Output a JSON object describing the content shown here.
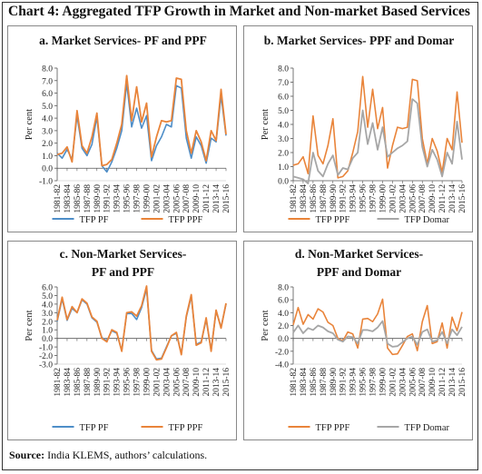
{
  "page": {
    "title": "Chart 4: Aggregated TFP Growth in Market and Non-market Based Services",
    "source_label": "Source:",
    "source_text": " India KLEMS, authors’ calculations."
  },
  "colors": {
    "tfp_pf": "#4e8ec8",
    "tfp_ppf": "#e9843a",
    "tfp_domar": "#a6a6a6"
  },
  "chart_data": [
    {
      "id": "a",
      "type": "line",
      "title": [
        "a. Market Services- PF and PPF"
      ],
      "ylabel": "Per cent",
      "ylim": [
        -1.0,
        8.0
      ],
      "yticks": [
        -1.0,
        0.0,
        1.0,
        2.0,
        3.0,
        4.0,
        5.0,
        6.0,
        7.0,
        8.0
      ],
      "x": [
        "1981-82",
        "1982-83",
        "1983-84",
        "1984-85",
        "1985-86",
        "1986-87",
        "1987-88",
        "1988-89",
        "1989-90",
        "1990-91",
        "1991-92",
        "1992-93",
        "1993-94",
        "1994-95",
        "1995-96",
        "1996-97",
        "1997-98",
        "1998-99",
        "1999-00",
        "2000-01",
        "2001-02",
        "2002-03",
        "2003-04",
        "2004-05",
        "2005-06",
        "2006-07",
        "2007-08",
        "2008-09",
        "2009-10",
        "2010-11",
        "2011-12",
        "2012-13",
        "2013-14",
        "2014-15",
        "2015-16"
      ],
      "xticks": [
        "1981-82",
        "1983-84",
        "1985-86",
        "1987-88",
        "1989-90",
        "1991-92",
        "1993-94",
        "1995-96",
        "1997-98",
        "1999-00",
        "2001-02",
        "2003-04",
        "2005-06",
        "2007-08",
        "2009-10",
        "2011-12",
        "2013-14",
        "2015-16"
      ],
      "series": [
        {
          "name": "TFP PF",
          "color_key": "tfp_pf",
          "values": [
            1.2,
            0.8,
            1.5,
            0.7,
            4.2,
            1.6,
            1.0,
            1.9,
            4.1,
            0.2,
            -0.3,
            0.5,
            1.6,
            3.0,
            6.8,
            3.3,
            4.8,
            3.2,
            4.2,
            0.6,
            1.8,
            2.5,
            3.5,
            3.3,
            6.6,
            6.4,
            2.4,
            0.8,
            2.5,
            1.8,
            0.4,
            2.4,
            2.1,
            5.8,
            2.6
          ]
        },
        {
          "name": "TFP PPF",
          "color_key": "tfp_ppf",
          "values": [
            1.1,
            1.2,
            1.7,
            0.5,
            4.6,
            1.8,
            1.2,
            2.5,
            4.4,
            0.2,
            0.3,
            0.7,
            2.0,
            3.5,
            7.4,
            3.8,
            6.5,
            3.7,
            5.2,
            0.9,
            2.5,
            3.8,
            3.7,
            3.8,
            7.2,
            7.1,
            3.0,
            1.2,
            3.0,
            2.1,
            0.6,
            3.0,
            2.2,
            6.3,
            2.7
          ]
        }
      ]
    },
    {
      "id": "b",
      "type": "line",
      "title": [
        "b. Market Services- PPF and Domar"
      ],
      "ylabel": "Per cent",
      "ylim": [
        0.0,
        8.0
      ],
      "yticks": [
        0.0,
        1.0,
        2.0,
        3.0,
        4.0,
        5.0,
        6.0,
        7.0,
        8.0
      ],
      "x": [
        "1981-82",
        "1982-83",
        "1983-84",
        "1984-85",
        "1985-86",
        "1986-87",
        "1987-88",
        "1988-89",
        "1989-90",
        "1990-91",
        "1991-92",
        "1992-93",
        "1993-94",
        "1994-95",
        "1995-96",
        "1996-97",
        "1997-98",
        "1998-99",
        "1999-00",
        "2000-01",
        "2001-02",
        "2002-03",
        "2003-04",
        "2004-05",
        "2005-06",
        "2006-07",
        "2007-08",
        "2008-09",
        "2009-10",
        "2010-11",
        "2011-12",
        "2012-13",
        "2013-14",
        "2014-15",
        "2015-16"
      ],
      "xticks": [
        "1981-82",
        "1983-84",
        "1985-86",
        "1987-88",
        "1989-90",
        "1991-92",
        "1993-94",
        "1995-96",
        "1997-98",
        "1999-00",
        "2001-02",
        "2003-04",
        "2005-06",
        "2007-08",
        "2009-10",
        "2011-12",
        "2013-14",
        "2015-16"
      ],
      "series": [
        {
          "name": "TFP PPF",
          "color_key": "tfp_ppf",
          "values": [
            1.1,
            1.2,
            1.7,
            0.5,
            4.6,
            1.8,
            1.2,
            2.5,
            4.4,
            0.2,
            0.3,
            0.7,
            2.0,
            3.5,
            7.4,
            3.8,
            6.5,
            3.7,
            5.2,
            0.9,
            2.5,
            3.8,
            3.7,
            3.8,
            7.2,
            7.1,
            3.0,
            1.2,
            3.0,
            2.1,
            0.6,
            3.0,
            2.2,
            6.3,
            2.7
          ]
        },
        {
          "name": "TFP Domar",
          "color_key": "tfp_domar",
          "values": [
            0.3,
            0.2,
            0.1,
            -0.2,
            2.0,
            0.7,
            0.3,
            1.2,
            1.8,
            0.4,
            0.9,
            0.8,
            1.6,
            2.0,
            5.0,
            2.6,
            4.1,
            2.2,
            3.8,
            1.7,
            2.0,
            2.3,
            2.5,
            2.8,
            5.8,
            5.5,
            2.4,
            1.0,
            2.2,
            1.5,
            0.3,
            2.0,
            1.2,
            4.2,
            1.5
          ]
        }
      ]
    },
    {
      "id": "c",
      "type": "line",
      "title": [
        "c. Non-Market Services-",
        "PF and PPF"
      ],
      "ylabel": "Per cent",
      "ylim": [
        -3.0,
        6.0
      ],
      "yticks": [
        -3.0,
        -2.0,
        -1.0,
        0.0,
        1.0,
        2.0,
        3.0,
        4.0,
        5.0,
        6.0
      ],
      "x": [
        "1981-82",
        "1982-83",
        "1983-84",
        "1984-85",
        "1985-86",
        "1986-87",
        "1987-88",
        "1988-89",
        "1989-90",
        "1990-91",
        "1991-92",
        "1992-93",
        "1993-94",
        "1994-95",
        "1995-96",
        "1996-97",
        "1997-98",
        "1998-99",
        "1999-00",
        "2000-01",
        "2001-02",
        "2002-03",
        "2003-04",
        "2004-05",
        "2005-06",
        "2006-07",
        "2007-08",
        "2008-09",
        "2009-10",
        "2010-11",
        "2011-12",
        "2012-13",
        "2013-14",
        "2014-15",
        "2015-16"
      ],
      "xticks": [
        "1981-82",
        "1983-84",
        "1985-86",
        "1987-88",
        "1989-90",
        "1991-92",
        "1993-94",
        "1995-96",
        "1997-98",
        "1999-00",
        "2001-02",
        "2003-04",
        "2005-06",
        "2007-08",
        "2009-10",
        "2011-12",
        "2013-14",
        "2015-16"
      ],
      "series": [
        {
          "name": "TFP PF",
          "color_key": "tfp_pf",
          "values": [
            2.0,
            4.6,
            2.1,
            3.5,
            3.0,
            4.5,
            4.0,
            2.4,
            1.9,
            0.1,
            -0.3,
            0.9,
            0.6,
            -1.4,
            2.9,
            2.9,
            2.2,
            3.6,
            5.8,
            -1.4,
            -2.4,
            -2.3,
            -1.0,
            0.3,
            0.6,
            -1.8,
            2.5,
            4.9,
            -0.7,
            -0.4,
            2.2,
            -1.4,
            3.2,
            1.3,
            4.0
          ]
        },
        {
          "name": "TFP PPF",
          "color_key": "tfp_ppf",
          "values": [
            2.1,
            4.8,
            2.2,
            3.7,
            3.0,
            4.6,
            4.1,
            2.5,
            2.0,
            0.0,
            -0.4,
            1.0,
            0.7,
            -1.5,
            3.0,
            3.1,
            2.6,
            3.8,
            6.1,
            -1.5,
            -2.5,
            -2.4,
            -1.1,
            0.3,
            0.7,
            -1.9,
            2.6,
            5.1,
            -0.8,
            -0.5,
            2.4,
            -1.5,
            3.3,
            1.2,
            4.1
          ]
        }
      ]
    },
    {
      "id": "d",
      "type": "line",
      "title": [
        "d. Non-Market Services-",
        "PPF and Domar"
      ],
      "ylabel": "Per cent",
      "ylim": [
        -4.0,
        8.0
      ],
      "yticks": [
        -4.0,
        -2.0,
        0.0,
        2.0,
        4.0,
        6.0,
        8.0
      ],
      "x": [
        "1981-82",
        "1982-83",
        "1983-84",
        "1984-85",
        "1985-86",
        "1986-87",
        "1987-88",
        "1988-89",
        "1989-90",
        "1990-91",
        "1991-92",
        "1992-93",
        "1993-94",
        "1994-95",
        "1995-96",
        "1996-97",
        "1997-98",
        "1998-99",
        "1999-00",
        "2000-01",
        "2001-02",
        "2002-03",
        "2003-04",
        "2004-05",
        "2005-06",
        "2006-07",
        "2007-08",
        "2008-09",
        "2009-10",
        "2010-11",
        "2011-12",
        "2012-13",
        "2013-14",
        "2014-15",
        "2015-16"
      ],
      "xticks": [
        "1981-82",
        "1983-84",
        "1985-86",
        "1987-88",
        "1989-90",
        "1991-92",
        "1993-94",
        "1995-96",
        "1997-98",
        "1999-00",
        "2001-02",
        "2003-04",
        "2005-06",
        "2007-08",
        "2009-10",
        "2011-12",
        "2013-14",
        "2015-16"
      ],
      "series": [
        {
          "name": "TFP PPF",
          "color_key": "tfp_ppf",
          "values": [
            2.1,
            4.8,
            2.2,
            3.7,
            3.0,
            4.6,
            4.1,
            2.5,
            2.0,
            0.0,
            -0.4,
            1.0,
            0.7,
            -1.5,
            3.0,
            3.1,
            2.6,
            3.8,
            6.1,
            -1.5,
            -2.5,
            -2.4,
            -1.1,
            0.3,
            0.7,
            -1.9,
            2.6,
            5.1,
            -0.8,
            -0.5,
            2.4,
            -1.5,
            3.3,
            1.2,
            4.1
          ]
        },
        {
          "name": "TFP Domar",
          "color_key": "tfp_domar",
          "values": [
            0.9,
            2.0,
            0.8,
            1.6,
            1.3,
            2.0,
            1.7,
            1.1,
            0.8,
            -0.2,
            -0.5,
            0.3,
            0.2,
            -0.8,
            1.3,
            1.3,
            1.1,
            1.7,
            2.7,
            -0.8,
            -1.3,
            -1.2,
            -0.6,
            0.0,
            0.3,
            -1.0,
            1.0,
            1.4,
            -0.5,
            -0.3,
            1.0,
            -0.8,
            1.4,
            0.5,
            1.8
          ]
        }
      ]
    }
  ]
}
